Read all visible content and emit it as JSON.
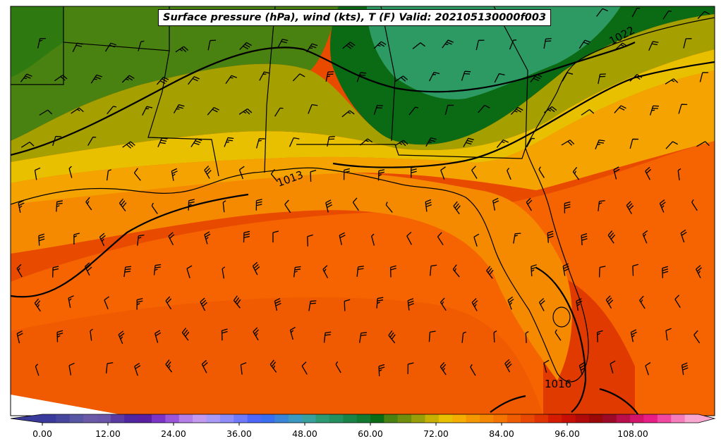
{
  "title": "Surface pressure (hPa), wind (kts), T (F) Valid: 202105130000f003",
  "isobar_labels": [
    "1013",
    "1016",
    "1022"
  ],
  "colorbar": {
    "ticks": [
      "0.00",
      "12.00",
      "24.00",
      "36.00",
      "48.00",
      "60.00",
      "72.00",
      "84.00",
      "96.00",
      "108.00"
    ],
    "colors": [
      "#3a3a9c",
      "#46469f",
      "#5656a4",
      "#6a5aa8",
      "#6a55a8",
      "#5b3aa4",
      "#4f25a0",
      "#5a1fa0",
      "#7b33c8",
      "#9a55d8",
      "#b57ee8",
      "#c39af0",
      "#a99af8",
      "#8d8cfa",
      "#6e79fb",
      "#4f66fb",
      "#3a6ef0",
      "#3b85d8",
      "#3b98c0",
      "#3aa09e",
      "#2e9a73",
      "#249060",
      "#1a8448",
      "#127a30",
      "#0b6a14",
      "#4a8212",
      "#6f8e0e",
      "#999f08",
      "#c8b000",
      "#e8c000",
      "#f5ad00",
      "#f59800",
      "#f58600",
      "#f57400",
      "#f05c00",
      "#e84800",
      "#e03400",
      "#d61c00",
      "#c80f06",
      "#b10a0a",
      "#9a0808",
      "#9c0a28",
      "#b80e4a",
      "#d4136a",
      "#e81e86",
      "#f048a0",
      "#f57cba",
      "#f9a6d0"
    ]
  },
  "palette": {
    "dark_green": "#0b6a14",
    "teal_green": "#2e9a63",
    "olive": "#4a8212",
    "olive_yellow": "#a5a000",
    "yellow": "#e8c000",
    "light_orange": "#f5a300",
    "orange": "#f58600",
    "deep_orange": "#f05c00",
    "red_orange": "#e03a00"
  }
}
